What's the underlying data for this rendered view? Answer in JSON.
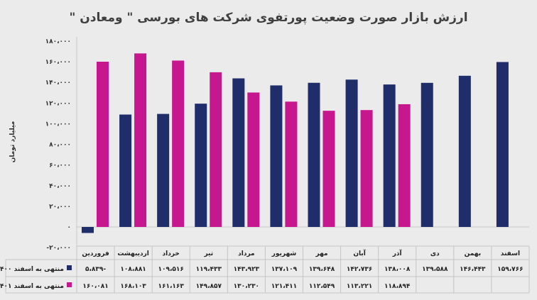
{
  "chart_data": {
    "type": "bar",
    "title": "ارزش بازار صورت وضعیت پورتفوی شرکت های بورسی \" ومعادن \"",
    "ylabel": "میلیارد تومان",
    "xlabel": "",
    "ylim": [
      -20000,
      180000
    ],
    "yticks": [
      -20000,
      0,
      20000,
      40000,
      60000,
      80000,
      100000,
      120000,
      140000,
      160000,
      180000
    ],
    "ytick_labels": [
      "-۲۰،۰۰۰",
      "۰",
      "۲۰،۰۰۰",
      "۴۰،۰۰۰",
      "۶۰،۰۰۰",
      "۸۰،۰۰۰",
      "۱۰۰،۰۰۰",
      "۱۲۰،۰۰۰",
      "۱۴۰،۰۰۰",
      "۱۶۰،۰۰۰",
      "۱۸۰،۰۰۰"
    ],
    "grid": false,
    "legend": "data-table-left",
    "categories": [
      "فروردین",
      "اردیبهشت",
      "خرداد",
      "تیر",
      "مرداد",
      "شهریور",
      "مهر",
      "آبان",
      "آذر",
      "دی",
      "بهمن",
      "اسفند"
    ],
    "series": [
      {
        "name": "منتهی به اسفند ۱۴۰۰",
        "color": "#1f2d6b",
        "values": [
          -5839,
          108881,
          109516,
          119433,
          143923,
          137109,
          139648,
          142736,
          138008,
          139588,
          146443,
          159766
        ],
        "labels": [
          "-۵،۸۳۹",
          "۱۰۸،۸۸۱",
          "۱۰۹،۵۱۶",
          "۱۱۹،۴۳۳",
          "۱۴۳،۹۲۳",
          "۱۳۷،۱۰۹",
          "۱۳۹،۶۴۸",
          "۱۴۲،۷۳۶",
          "۱۳۸،۰۰۸",
          "۱۳۹،۵۸۸",
          "۱۴۶،۴۴۳",
          "۱۵۹،۷۶۶"
        ]
      },
      {
        "name": "منتهی به اسفند ۱۴۰۱",
        "color": "#c7178f",
        "values": [
          160081,
          168103,
          161163,
          149857,
          130230,
          121411,
          112549,
          113221,
          118894,
          null,
          null,
          null
        ],
        "labels": [
          "۱۶۰،۰۸۱",
          "۱۶۸،۱۰۳",
          "۱۶۱،۱۶۳",
          "۱۴۹،۸۵۷",
          "۱۳۰،۲۳۰",
          "۱۲۱،۴۱۱",
          "۱۱۲،۵۴۹",
          "۱۱۳،۲۲۱",
          "۱۱۸،۸۹۴",
          "",
          "",
          ""
        ]
      }
    ]
  }
}
